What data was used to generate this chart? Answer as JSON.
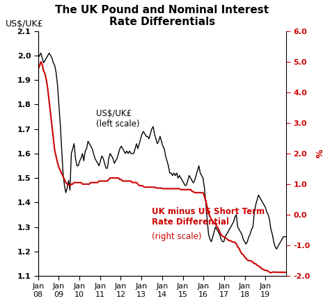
{
  "title": "The UK Pound and Nominal Interest\nRate Differentials",
  "left_ylabel": "US$/UK£",
  "right_ylabel": "%",
  "left_ylim": [
    1.1,
    2.1
  ],
  "right_ylim": [
    -2.0,
    6.0
  ],
  "left_yticks": [
    1.1,
    1.2,
    1.3,
    1.4,
    1.5,
    1.6,
    1.7,
    1.8,
    1.9,
    2.0,
    2.1
  ],
  "right_yticks": [
    -2.0,
    -1.0,
    0.0,
    1.0,
    2.0,
    3.0,
    4.0,
    5.0,
    6.0
  ],
  "xtick_labels": [
    "Jan\n08",
    "Jan\n09",
    "Jan\n10",
    "Jan\n11",
    "Jan\n12",
    "Jan\n13",
    "Jan\n14",
    "Jan\n15",
    "Jan\n16",
    "Jan\n17",
    "Jan\n18",
    "Jan\n19"
  ],
  "annotation_black_bold": "US$/UK£",
  "annotation_black_normal": "(left scale)",
  "annotation_red_bold": "UK minus US Short Term\nRate Differential",
  "annotation_red_normal": " (right scale)",
  "line_black_color": "#000000",
  "line_red_color": "#cc0000",
  "background_color": "#ffffff",
  "usdgbp": [
    1.99,
    2.0,
    2.01,
    1.99,
    1.97,
    1.98,
    1.99,
    2.0,
    2.01,
    2.0,
    1.99,
    1.97,
    1.96,
    1.93,
    1.88,
    1.8,
    1.72,
    1.62,
    1.52,
    1.47,
    1.44,
    1.46,
    1.49,
    1.45,
    1.6,
    1.62,
    1.64,
    1.58,
    1.55,
    1.55,
    1.57,
    1.58,
    1.6,
    1.57,
    1.61,
    1.62,
    1.65,
    1.64,
    1.63,
    1.62,
    1.6,
    1.58,
    1.57,
    1.56,
    1.55,
    1.57,
    1.59,
    1.58,
    1.56,
    1.54,
    1.54,
    1.58,
    1.6,
    1.59,
    1.58,
    1.56,
    1.57,
    1.58,
    1.6,
    1.62,
    1.63,
    1.62,
    1.61,
    1.6,
    1.61,
    1.6,
    1.61,
    1.6,
    1.6,
    1.6,
    1.62,
    1.64,
    1.62,
    1.64,
    1.66,
    1.68,
    1.69,
    1.68,
    1.67,
    1.67,
    1.66,
    1.68,
    1.7,
    1.71,
    1.68,
    1.66,
    1.64,
    1.65,
    1.67,
    1.65,
    1.63,
    1.62,
    1.59,
    1.57,
    1.55,
    1.52,
    1.52,
    1.51,
    1.52,
    1.51,
    1.52,
    1.5,
    1.51,
    1.5,
    1.49,
    1.48,
    1.47,
    1.47,
    1.49,
    1.51,
    1.5,
    1.49,
    1.48,
    1.49,
    1.51,
    1.53,
    1.55,
    1.52,
    1.51,
    1.5,
    1.46,
    1.4,
    1.33,
    1.27,
    1.25,
    1.24,
    1.26,
    1.28,
    1.3,
    1.29,
    1.28,
    1.27,
    1.25,
    1.24,
    1.24,
    1.26,
    1.27,
    1.28,
    1.29,
    1.3,
    1.31,
    1.32,
    1.34,
    1.35,
    1.3,
    1.29,
    1.28,
    1.27,
    1.25,
    1.24,
    1.23,
    1.24,
    1.26,
    1.27,
    1.29,
    1.3,
    1.36,
    1.39,
    1.41,
    1.43,
    1.42,
    1.41,
    1.4,
    1.39,
    1.38,
    1.36,
    1.35,
    1.33,
    1.29,
    1.27,
    1.24,
    1.22,
    1.21,
    1.22,
    1.23,
    1.24,
    1.25,
    1.26,
    1.26,
    1.26
  ],
  "rate_diff": [
    4.75,
    4.85,
    5.0,
    4.9,
    4.7,
    4.6,
    4.4,
    4.1,
    3.7,
    3.3,
    2.9,
    2.5,
    2.1,
    1.9,
    1.7,
    1.55,
    1.45,
    1.35,
    1.25,
    1.15,
    1.05,
    1.0,
    0.98,
    0.95,
    1.0,
    1.0,
    1.05,
    1.05,
    1.05,
    1.05,
    1.05,
    1.05,
    1.0,
    1.0,
    1.0,
    1.0,
    1.0,
    1.0,
    1.05,
    1.05,
    1.05,
    1.05,
    1.05,
    1.05,
    1.1,
    1.1,
    1.1,
    1.1,
    1.1,
    1.1,
    1.1,
    1.15,
    1.2,
    1.2,
    1.2,
    1.2,
    1.2,
    1.2,
    1.2,
    1.15,
    1.15,
    1.1,
    1.1,
    1.1,
    1.1,
    1.1,
    1.1,
    1.1,
    1.05,
    1.05,
    1.05,
    1.05,
    1.0,
    0.95,
    0.95,
    0.95,
    0.92,
    0.9,
    0.9,
    0.9,
    0.9,
    0.9,
    0.9,
    0.9,
    0.9,
    0.88,
    0.87,
    0.87,
    0.87,
    0.87,
    0.85,
    0.85,
    0.85,
    0.85,
    0.85,
    0.85,
    0.85,
    0.85,
    0.85,
    0.85,
    0.85,
    0.85,
    0.85,
    0.82,
    0.82,
    0.82,
    0.82,
    0.82,
    0.82,
    0.82,
    0.82,
    0.77,
    0.75,
    0.72,
    0.72,
    0.72,
    0.72,
    0.72,
    0.72,
    0.72,
    0.6,
    0.45,
    0.25,
    0.05,
    -0.05,
    -0.15,
    -0.22,
    -0.28,
    -0.3,
    -0.38,
    -0.45,
    -0.55,
    -0.65,
    -0.7,
    -0.72,
    -0.75,
    -0.78,
    -0.82,
    -0.85,
    -0.85,
    -0.88,
    -0.9,
    -0.9,
    -0.95,
    -1.05,
    -1.1,
    -1.2,
    -1.28,
    -1.3,
    -1.38,
    -1.42,
    -1.48,
    -1.5,
    -1.5,
    -1.52,
    -1.55,
    -1.6,
    -1.6,
    -1.65,
    -1.68,
    -1.7,
    -1.75,
    -1.78,
    -1.8,
    -1.82,
    -1.82,
    -1.85,
    -1.88,
    -1.9,
    -1.88,
    -1.87,
    -1.88,
    -1.88,
    -1.88,
    -1.88,
    -1.88,
    -1.88,
    -1.88,
    -1.88,
    -1.88
  ]
}
